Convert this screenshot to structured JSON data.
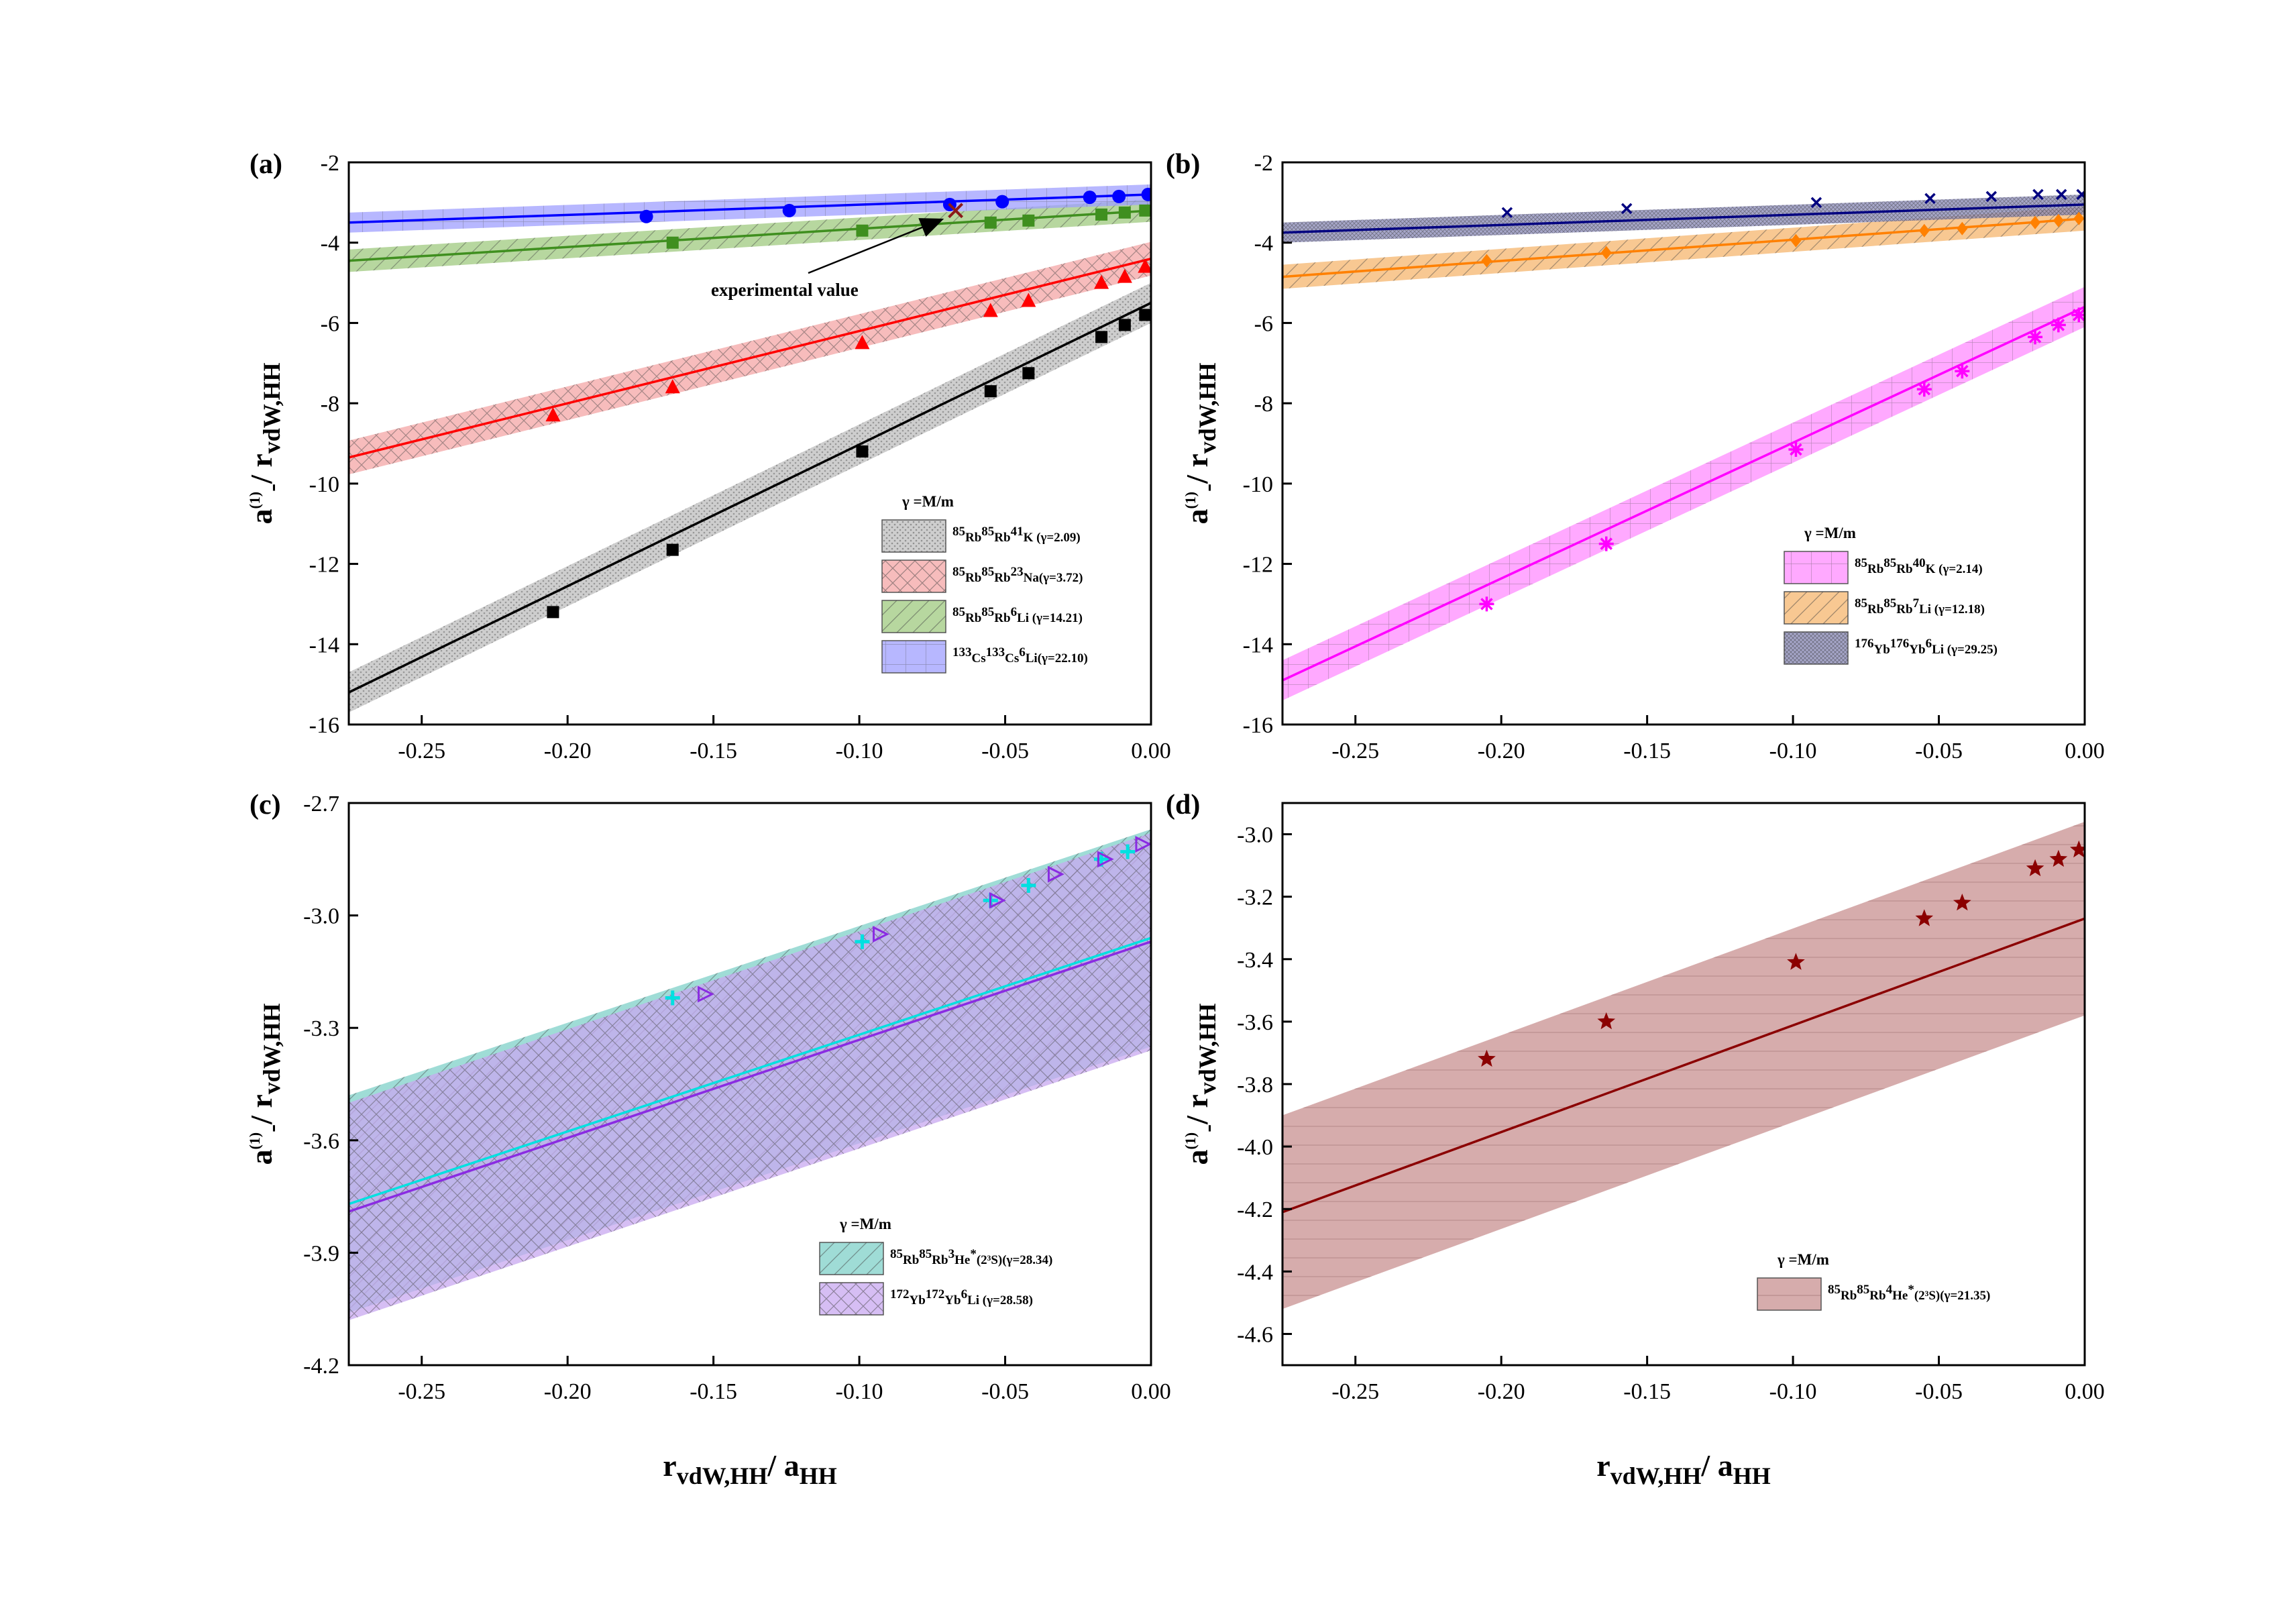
{
  "figure": {
    "xlabel": "r",
    "xlabel_sub": "vdW,HH",
    "xlabel_rest": "/ a",
    "xlabel_sub2": "HH",
    "ylabel_a": "a",
    "ylabel_sup": "(1)",
    "ylabel_sub": "-",
    "ylabel_rest": "/ r",
    "ylabel_sub2": "vdW,HH",
    "legend_title": "γ =M/m",
    "annotation": "experimental value"
  },
  "chart_data": [
    {
      "panel": "(a)",
      "type": "line",
      "xlim": [
        -0.275,
        0.0
      ],
      "ylim": [
        -16,
        -2
      ],
      "xticks": [
        -0.25,
        -0.2,
        -0.15,
        -0.1,
        -0.05,
        0.0
      ],
      "xtick_labels": [
        "-0.25",
        "-0.20",
        "-0.15",
        "-0.10",
        "-0.05",
        "0.00"
      ],
      "yticks": [
        -16,
        -14,
        -12,
        -10,
        -8,
        -6,
        -4,
        -2
      ],
      "ytick_labels": [
        "-16",
        "-14",
        "-12",
        "-10",
        "-8",
        "-6",
        "-4",
        "-2"
      ],
      "legend_position": "bottom-right",
      "series": [
        {
          "name": "85Rb85Rb41K (γ=2.09)",
          "label_parts": [
            "85",
            "Rb",
            "85",
            "Rb",
            "41",
            "K (γ=2.09)"
          ],
          "color": "#000000",
          "band_color": "#bdbdbd",
          "band_pattern": "dots",
          "marker": "square",
          "fit": [
            [
              -0.275,
              -15.2
            ],
            [
              0.0,
              -5.5
            ]
          ],
          "band_halfwidth": 0.5,
          "points": [
            [
              -0.205,
              -13.2
            ],
            [
              -0.164,
              -11.65
            ],
            [
              -0.099,
              -9.2
            ],
            [
              -0.055,
              -7.7
            ],
            [
              -0.042,
              -7.25
            ],
            [
              -0.017,
              -6.35
            ],
            [
              -0.009,
              -6.05
            ],
            [
              -0.002,
              -5.8
            ]
          ]
        },
        {
          "name": "85Rb85Rb23Na(γ=3.72)",
          "label_parts": [
            "85",
            "Rb",
            "85",
            "Rb",
            "23",
            "Na(γ=3.72)"
          ],
          "color": "#ff0000",
          "band_color": "#f4a6a6",
          "band_pattern": "cross",
          "marker": "triangle",
          "fit": [
            [
              -0.275,
              -9.35
            ],
            [
              0.0,
              -4.4
            ]
          ],
          "band_halfwidth": 0.42,
          "points": [
            [
              -0.205,
              -8.3
            ],
            [
              -0.164,
              -7.6
            ],
            [
              -0.099,
              -6.5
            ],
            [
              -0.055,
              -5.7
            ],
            [
              -0.042,
              -5.45
            ],
            [
              -0.017,
              -5.0
            ],
            [
              -0.009,
              -4.85
            ],
            [
              -0.002,
              -4.6
            ]
          ]
        },
        {
          "name": "85Rb85Rb6Li (γ=14.21)",
          "label_parts": [
            "85",
            "Rb",
            "85",
            "Rb",
            "6",
            "Li (γ=14.21)"
          ],
          "color": "#3f8f1f",
          "band_color": "#9fc97f",
          "band_pattern": "diag",
          "marker": "square",
          "fit": [
            [
              -0.275,
              -4.45
            ],
            [
              0.0,
              -3.2
            ]
          ],
          "band_halfwidth": 0.28,
          "points": [
            [
              -0.164,
              -4.0
            ],
            [
              -0.099,
              -3.7
            ],
            [
              -0.055,
              -3.5
            ],
            [
              -0.042,
              -3.45
            ],
            [
              -0.017,
              -3.3
            ],
            [
              -0.009,
              -3.25
            ],
            [
              -0.002,
              -3.2
            ]
          ]
        },
        {
          "name": "133Cs133Cs6Li(γ=22.10)",
          "label_parts": [
            "133",
            "Cs",
            "133",
            "Cs",
            "6",
            "Li(γ=22.10)"
          ],
          "color": "#0000ff",
          "band_color": "#9f9fff",
          "band_pattern": "grid",
          "marker": "circle",
          "fit": [
            [
              -0.275,
              -3.5
            ],
            [
              0.0,
              -2.8
            ]
          ],
          "band_halfwidth": 0.25,
          "points": [
            [
              -0.173,
              -3.35
            ],
            [
              -0.124,
              -3.2
            ],
            [
              -0.069,
              -3.05
            ],
            [
              -0.051,
              -2.98
            ],
            [
              -0.021,
              -2.87
            ],
            [
              -0.011,
              -2.85
            ],
            [
              -0.001,
              -2.8
            ]
          ]
        }
      ],
      "experimental_point": [
        -0.067,
        -3.2
      ]
    },
    {
      "panel": "(b)",
      "type": "line",
      "xlim": [
        -0.275,
        0.0
      ],
      "ylim": [
        -16,
        -2
      ],
      "xticks": [
        -0.25,
        -0.2,
        -0.15,
        -0.1,
        -0.05,
        0.0
      ],
      "xtick_labels": [
        "-0.25",
        "-0.20",
        "-0.15",
        "-0.10",
        "-0.05",
        "0.00"
      ],
      "yticks": [
        -16,
        -14,
        -12,
        -10,
        -8,
        -6,
        -4,
        -2
      ],
      "ytick_labels": [
        "-16",
        "-14",
        "-12",
        "-10",
        "-8",
        "-6",
        "-4",
        "-2"
      ],
      "legend_position": "bottom-right",
      "series": [
        {
          "name": "85Rb85Rb40K (γ=2.14)",
          "label_parts": [
            "85",
            "Rb",
            "85",
            "Rb",
            "40",
            "K (γ=2.14)"
          ],
          "color": "#ff00ff",
          "band_color": "#ff8cff",
          "band_pattern": "grid",
          "marker": "asterisk",
          "fit": [
            [
              -0.275,
              -14.9
            ],
            [
              0.0,
              -5.6
            ]
          ],
          "band_halfwidth": 0.5,
          "points": [
            [
              -0.205,
              -13.0
            ],
            [
              -0.164,
              -11.5
            ],
            [
              -0.099,
              -9.15
            ],
            [
              -0.055,
              -7.65
            ],
            [
              -0.042,
              -7.2
            ],
            [
              -0.017,
              -6.35
            ],
            [
              -0.009,
              -6.05
            ],
            [
              -0.002,
              -5.8
            ]
          ]
        },
        {
          "name": "85Rb85Rb7Li (γ=12.18)",
          "label_parts": [
            "85",
            "Rb",
            "85",
            "Rb",
            "7",
            "Li (γ=12.18)"
          ],
          "color": "#ff8000",
          "band_color": "#f5b56e",
          "band_pattern": "diag",
          "marker": "diamond",
          "fit": [
            [
              -0.275,
              -4.85
            ],
            [
              0.0,
              -3.4
            ]
          ],
          "band_halfwidth": 0.3,
          "points": [
            [
              -0.205,
              -4.45
            ],
            [
              -0.164,
              -4.25
            ],
            [
              -0.099,
              -3.95
            ],
            [
              -0.055,
              -3.7
            ],
            [
              -0.042,
              -3.65
            ],
            [
              -0.017,
              -3.5
            ],
            [
              -0.009,
              -3.45
            ],
            [
              -0.002,
              -3.4
            ]
          ]
        },
        {
          "name": "176Yb176Yb6Li (γ=29.25)",
          "label_parts": [
            "176",
            "Yb",
            "176",
            "Yb",
            "6",
            "Li (γ=29.25)"
          ],
          "color": "#000080",
          "band_color": "#8a8ab8",
          "band_pattern": "dense",
          "marker": "x",
          "fit": [
            [
              -0.275,
              -3.75
            ],
            [
              0.0,
              -3.05
            ]
          ],
          "band_halfwidth": 0.25,
          "points": [
            [
              -0.198,
              -3.25
            ],
            [
              -0.157,
              -3.15
            ],
            [
              -0.092,
              -3.0
            ],
            [
              -0.053,
              -2.9
            ],
            [
              -0.032,
              -2.85
            ],
            [
              -0.016,
              -2.8
            ],
            [
              -0.008,
              -2.8
            ],
            [
              -0.001,
              -2.8
            ]
          ]
        }
      ]
    },
    {
      "panel": "(c)",
      "type": "line",
      "xlim": [
        -0.275,
        0.0
      ],
      "ylim": [
        -4.2,
        -2.7
      ],
      "xticks": [
        -0.25,
        -0.2,
        -0.15,
        -0.1,
        -0.05,
        0.0
      ],
      "xtick_labels": [
        "-0.25",
        "-0.20",
        "-0.15",
        "-0.10",
        "-0.05",
        "0.00"
      ],
      "yticks": [
        -4.2,
        -3.9,
        -3.6,
        -3.3,
        -3.0,
        -2.7
      ],
      "ytick_labels": [
        "-4.2",
        "-3.9",
        "-3.6",
        "-3.3",
        "-3.0",
        "-2.7"
      ],
      "legend_position": "bottom-right",
      "series": [
        {
          "name": "85Rb85Rb3He*(2³S)(γ=28.34)",
          "label_parts": [
            "85",
            "Rb",
            "85",
            "Rb",
            "3",
            "He",
            "*",
            "(2³S)(γ=28.34)"
          ],
          "color": "#00e0e0",
          "band_color": "#7fd0c8",
          "band_pattern": "diag",
          "marker": "plus",
          "fit": [
            [
              -0.275,
              -3.77
            ],
            [
              0.0,
              -3.06
            ]
          ],
          "band_halfwidth": 0.29,
          "points": [
            [
              -0.164,
              -3.22
            ],
            [
              -0.099,
              -3.07
            ],
            [
              -0.055,
              -2.96
            ],
            [
              -0.042,
              -2.92
            ],
            [
              -0.017,
              -2.85
            ],
            [
              -0.008,
              -2.83
            ]
          ]
        },
        {
          "name": "172Yb172Yb6Li (γ=28.58)",
          "label_parts": [
            "172",
            "Yb",
            "172",
            "Yb",
            "6",
            "Li (γ=28.58)"
          ],
          "color": "#8a2be2",
          "band_color": "#c8a8f0",
          "band_pattern": "cross",
          "marker": "right-triangle",
          "fit": [
            [
              -0.275,
              -3.79
            ],
            [
              0.0,
              -3.07
            ]
          ],
          "band_halfwidth": 0.29,
          "points": [
            [
              -0.153,
              -3.21
            ],
            [
              -0.093,
              -3.05
            ],
            [
              -0.053,
              -2.96
            ],
            [
              -0.033,
              -2.89
            ],
            [
              -0.016,
              -2.85
            ],
            [
              -0.003,
              -2.81
            ]
          ]
        }
      ]
    },
    {
      "panel": "(d)",
      "type": "line",
      "xlim": [
        -0.275,
        0.0
      ],
      "ylim": [
        -4.7,
        -2.9
      ],
      "xticks": [
        -0.25,
        -0.2,
        -0.15,
        -0.1,
        -0.05,
        0.0
      ],
      "xtick_labels": [
        "-0.25",
        "-0.20",
        "-0.15",
        "-0.10",
        "-0.05",
        "0.00"
      ],
      "yticks": [
        -4.6,
        -4.4,
        -4.2,
        -4.0,
        -3.8,
        -3.6,
        -3.4,
        -3.2,
        -3.0
      ],
      "ytick_labels": [
        "-4.6",
        "-4.4",
        "-4.2",
        "-4.0",
        "-3.8",
        "-3.6",
        "-3.4",
        "-3.2",
        "-3.0"
      ],
      "legend_position": "bottom-right",
      "series": [
        {
          "name": "85Rb85Rb4He*(2³S)(γ=21.35)",
          "label_parts": [
            "85",
            "Rb",
            "85",
            "Rb",
            "4",
            "He",
            "*",
            "(2³S)(γ=21.35)"
          ],
          "color": "#8b0000",
          "band_color": "#c89090",
          "band_pattern": "hlines",
          "marker": "star",
          "fit": [
            [
              -0.275,
              -4.21
            ],
            [
              0.0,
              -3.27
            ]
          ],
          "band_halfwidth": 0.31,
          "points": [
            [
              -0.205,
              -3.72
            ],
            [
              -0.164,
              -3.6
            ],
            [
              -0.099,
              -3.41
            ],
            [
              -0.055,
              -3.27
            ],
            [
              -0.042,
              -3.22
            ],
            [
              -0.017,
              -3.11
            ],
            [
              -0.009,
              -3.08
            ],
            [
              -0.002,
              -3.05
            ]
          ]
        }
      ]
    }
  ]
}
